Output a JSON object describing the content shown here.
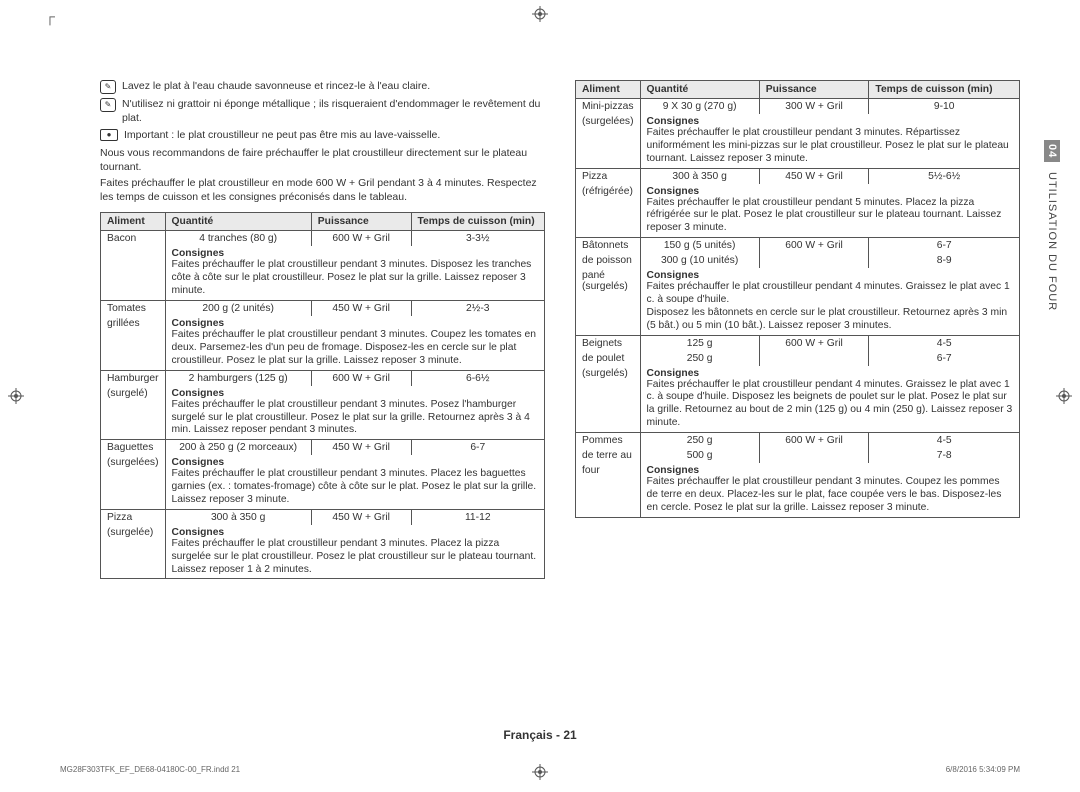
{
  "sideTab": {
    "num": "04",
    "txt": "UTILISATION DU FOUR"
  },
  "footer": "Français - 21",
  "printLeft": "MG28F303TFK_EF_DE68-04180C-00_FR.indd   21",
  "printRight": "6/8/2016   5:34:09 PM",
  "intro": {
    "line1": "Lavez le plat à l'eau chaude savonneuse et rincez-le à l'eau claire.",
    "line2": "N'utilisez ni grattoir ni éponge métallique ; ils risqueraient d'endommager le revêtement du plat.",
    "line3": "Important : le plat croustilleur ne peut pas être mis au lave-vaisselle.",
    "line4": "Nous vous recommandons de faire préchauffer le plat croustilleur directement sur le plateau tournant.",
    "line5": "Faites préchauffer le plat croustilleur en mode 600 W + Gril pendant 3 à 4 minutes. Respectez les temps de cuisson et les consignes préconisés dans le tableau."
  },
  "headers": {
    "aliment": "Aliment",
    "quantite": "Quantité",
    "puissance": "Puissance",
    "temps": "Temps de cuisson (min)"
  },
  "consignesLabel": "Consignes",
  "table1": [
    {
      "aliment": "Bacon",
      "aliment2": "",
      "rows": [
        {
          "q": "4 tranches (80 g)",
          "p": "600 W + Gril",
          "t": "3-3½"
        }
      ],
      "consignes": "Faites préchauffer le plat croustilleur pendant 3 minutes. Disposez les tranches côte à côte sur le plat croustilleur. Posez le plat sur la grille. Laissez reposer 3 minute."
    },
    {
      "aliment": "Tomates",
      "aliment2": "grillées",
      "rows": [
        {
          "q": "200 g (2 unités)",
          "p": "450 W + Gril",
          "t": "2½-3"
        }
      ],
      "consignes": "Faites préchauffer le plat croustilleur pendant 3 minutes. Coupez les tomates en deux. Parsemez-les d'un peu de fromage. Disposez-les en cercle sur le plat croustilleur. Posez le plat sur la grille. Laissez reposer 3 minute."
    },
    {
      "aliment": "Hamburger",
      "aliment2": "(surgelé)",
      "rows": [
        {
          "q": "2 hamburgers (125 g)",
          "p": "600 W + Gril",
          "t": "6-6½"
        }
      ],
      "consignes": "Faites préchauffer le plat croustilleur pendant 3 minutes. Posez l'hamburger surgelé sur le plat croustilleur. Posez le plat sur la grille. Retournez après 3 à 4 min. Laissez reposer pendant 3 minutes."
    },
    {
      "aliment": "Baguettes",
      "aliment2": "(surgelées)",
      "rows": [
        {
          "q": "200 à 250 g (2 morceaux)",
          "p": "450 W + Gril",
          "t": "6-7"
        }
      ],
      "consignes": "Faites préchauffer le plat croustilleur pendant 3 minutes. Placez les baguettes garnies (ex. : tomates-fromage) côte à côte sur le plat. Posez le plat sur la grille. Laissez reposer 3 minute."
    },
    {
      "aliment": "Pizza",
      "aliment2": "(surgelée)",
      "rows": [
        {
          "q": "300 à 350 g",
          "p": "450 W + Gril",
          "t": "11-12"
        }
      ],
      "consignes": "Faites préchauffer le plat croustilleur pendant 3 minutes. Placez la pizza surgelée sur le plat croustilleur. Posez le plat croustilleur sur le plateau tournant. Laissez reposer 1 à 2 minutes."
    }
  ],
  "table2": [
    {
      "aliment": "Mini-pizzas",
      "aliment2": "(surgelées)",
      "rows": [
        {
          "q": "9 X 30 g (270 g)",
          "p": "300 W + Gril",
          "t": "9-10"
        }
      ],
      "consignes": "Faites préchauffer le plat croustilleur pendant 3 minutes. Répartissez uniformément les mini-pizzas sur le plat croustilleur. Posez le plat sur le plateau tournant. Laissez reposer 3 minute."
    },
    {
      "aliment": "Pizza",
      "aliment2": "(réfrigérée)",
      "rows": [
        {
          "q": "300 à 350 g",
          "p": "450 W + Gril",
          "t": "5½-6½"
        }
      ],
      "consignes": "Faites préchauffer le plat croustilleur pendant 5 minutes. Placez la pizza réfrigérée sur le plat. Posez le plat croustilleur sur le plateau tournant. Laissez reposer 3 minute."
    },
    {
      "aliment": "Bâtonnets",
      "aliment2": "de poisson",
      "aliment3": "pané",
      "aliment4": "(surgelés)",
      "rows": [
        {
          "q": "150 g (5 unités)",
          "p": "600 W + Gril",
          "t": "6-7"
        },
        {
          "q": "300 g (10 unités)",
          "p": "",
          "t": "8-9"
        }
      ],
      "consignes": "Faites préchauffer le plat croustilleur pendant 4 minutes. Graissez le plat avec 1 c. à soupe d'huile.\nDisposez les bâtonnets en cercle sur le plat croustilleur. Retournez après 3 min (5 bât.) ou 5 min (10 bât.). Laissez reposer 3 minutes."
    },
    {
      "aliment": "Beignets",
      "aliment2": "de poulet",
      "aliment3": "(surgelés)",
      "rows": [
        {
          "q": "125 g",
          "p": "600 W + Gril",
          "t": "4-5"
        },
        {
          "q": "250 g",
          "p": "",
          "t": "6-7"
        }
      ],
      "consignes": "Faites préchauffer le plat croustilleur pendant 4 minutes. Graissez le plat avec 1 c. à soupe d'huile. Disposez les beignets de poulet sur le plat. Posez le plat sur la grille. Retournez au bout de 2 min (125 g) ou 4 min (250 g). Laissez reposer 3 minute."
    },
    {
      "aliment": "Pommes",
      "aliment2": "de terre au",
      "aliment3": "four",
      "rows": [
        {
          "q": "250 g",
          "p": "600 W + Gril",
          "t": "4-5"
        },
        {
          "q": "500 g",
          "p": "",
          "t": "7-8"
        }
      ],
      "consignes": "Faites préchauffer le plat croustilleur pendant 3 minutes. Coupez les pommes de terre en deux. Placez-les sur le plat, face coupée vers le bas. Disposez-les en cercle. Posez le plat sur la grille. Laissez reposer 3 minute."
    }
  ]
}
